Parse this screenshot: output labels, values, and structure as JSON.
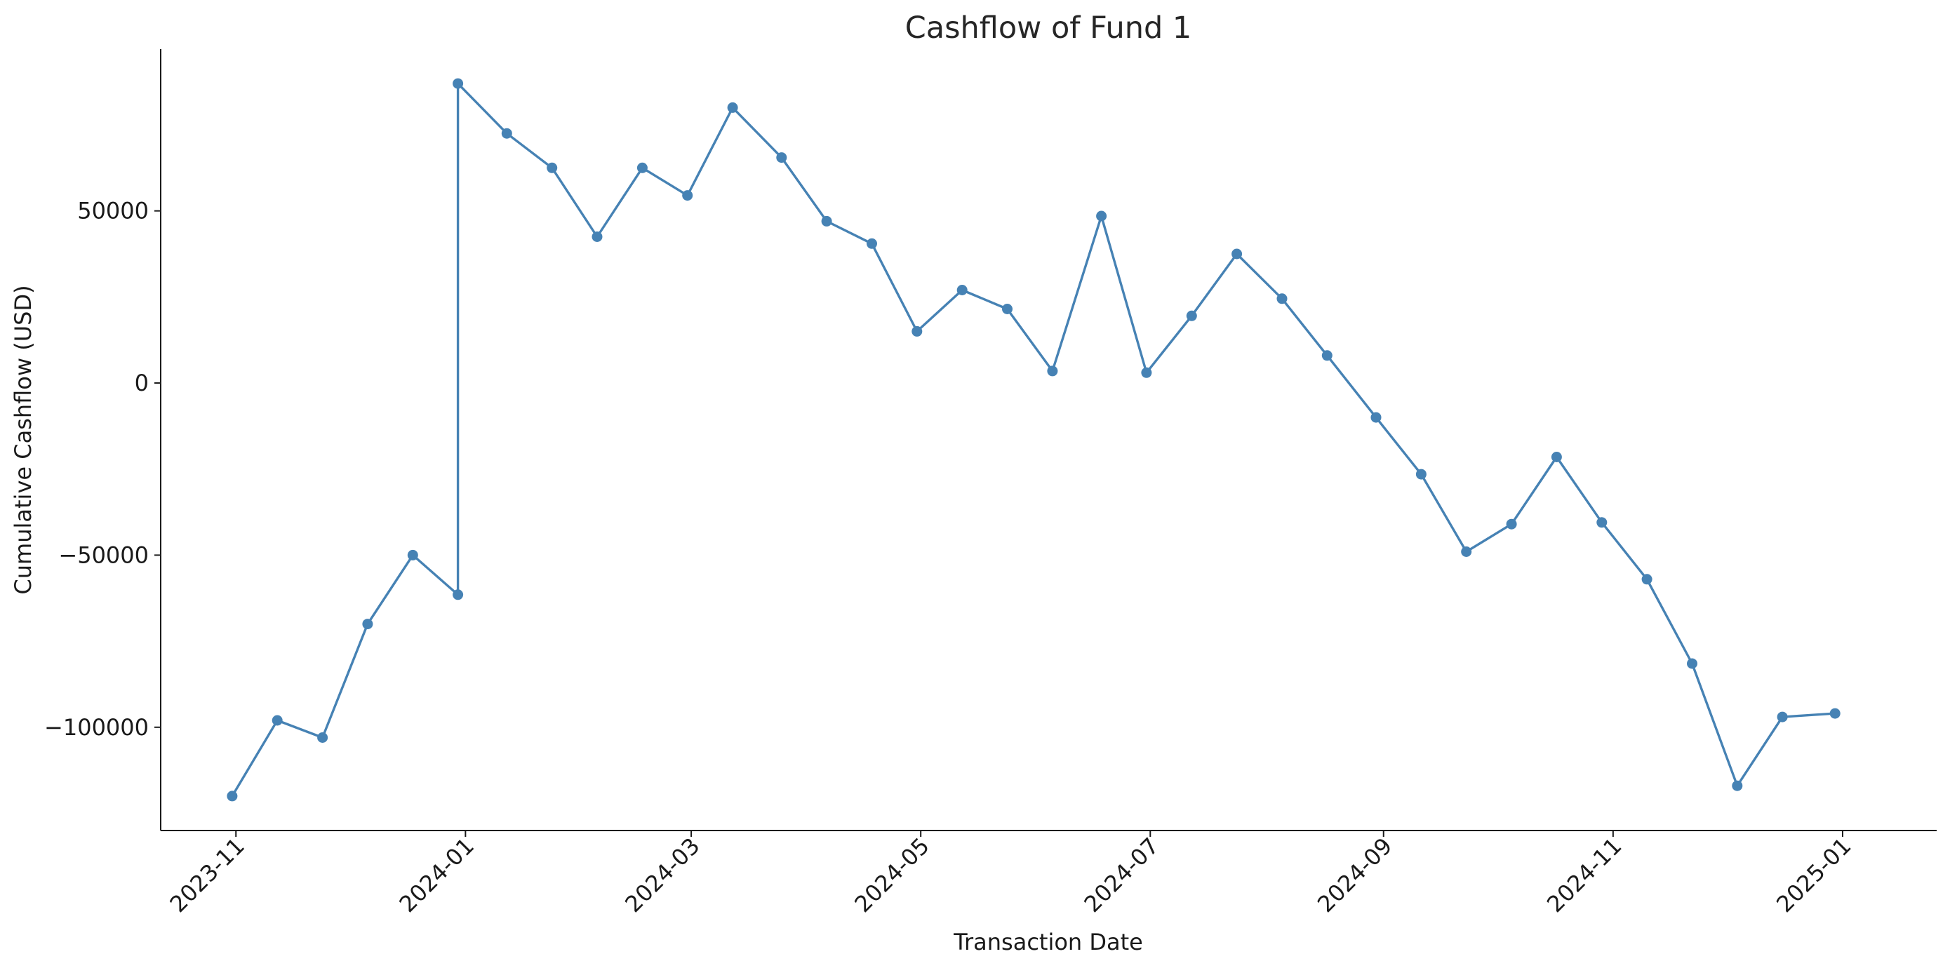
{
  "chart_data": {
    "type": "line",
    "title": "Cashflow of Fund 1",
    "xlabel": "Transaction Date",
    "ylabel": "Cumulative Cashflow (USD)",
    "x_axis_type": "date",
    "xlim": [
      "2023-10-12",
      "2025-01-26"
    ],
    "ylim": [
      -130000,
      97000
    ],
    "x_ticks": [
      "2023-11-01",
      "2024-01-01",
      "2024-03-01",
      "2024-05-01",
      "2024-07-01",
      "2024-09-01",
      "2024-11-01",
      "2025-01-01"
    ],
    "x_tick_labels": [
      "2023-11",
      "2024-01",
      "2024-03",
      "2024-05",
      "2024-07",
      "2024-09",
      "2024-11",
      "2025-01"
    ],
    "y_ticks": [
      -100000,
      -50000,
      0,
      50000
    ],
    "y_tick_labels": [
      "−100000",
      "−50000",
      "0",
      "50000"
    ],
    "grid": false,
    "legend": "none",
    "colors": {
      "line": "#4682b4",
      "marker": "#4682b4",
      "axis": "#1a1a1a"
    },
    "series": [
      {
        "x": [
          "2023-10-31",
          "2023-11-12",
          "2023-11-24",
          "2023-12-06",
          "2023-12-18",
          "2023-12-30",
          "2023-12-30",
          "2024-01-12",
          "2024-01-24",
          "2024-02-05",
          "2024-02-17",
          "2024-02-29",
          "2024-03-12",
          "2024-03-25",
          "2024-04-06",
          "2024-04-18",
          "2024-04-30",
          "2024-05-12",
          "2024-05-24",
          "2024-06-05",
          "2024-06-18",
          "2024-06-30",
          "2024-07-12",
          "2024-07-24",
          "2024-08-05",
          "2024-08-17",
          "2024-08-30",
          "2024-09-11",
          "2024-09-23",
          "2024-10-05",
          "2024-10-17",
          "2024-10-29",
          "2024-11-10",
          "2024-11-22",
          "2024-12-04",
          "2024-12-16",
          "2024-12-30"
        ],
        "y": [
          -120000,
          -98000,
          -103000,
          -70000,
          -50000,
          -61500,
          87000,
          72500,
          62500,
          42500,
          62500,
          54500,
          80000,
          65500,
          47000,
          40500,
          15000,
          27000,
          21500,
          3500,
          48500,
          3000,
          19500,
          37500,
          24500,
          8000,
          -10000,
          -26500,
          -49000,
          -41000,
          -21500,
          -40500,
          -57000,
          -81500,
          -117000,
          -97000,
          -96000
        ]
      }
    ]
  }
}
